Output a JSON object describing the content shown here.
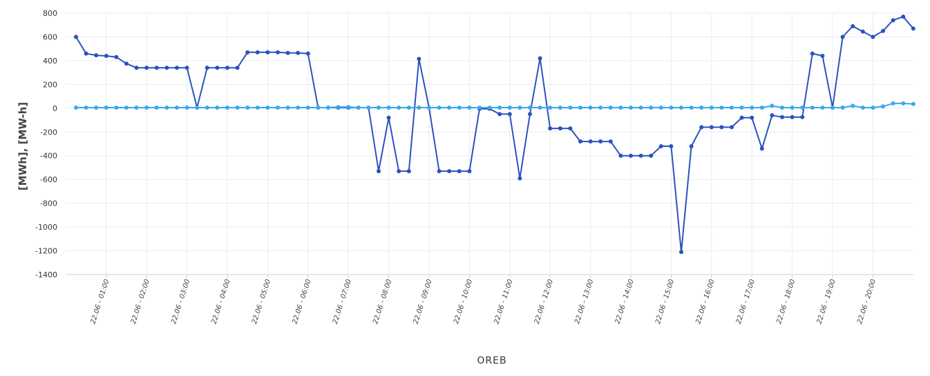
{
  "chart_data": {
    "type": "line",
    "title": "",
    "xlabel": "OREB",
    "ylabel": "[MWh], [MW-h]",
    "ylim": [
      -1400,
      800
    ],
    "y_ticks": [
      800,
      600,
      400,
      200,
      0,
      -200,
      -400,
      -600,
      -800,
      -1000,
      -1200,
      -1400
    ],
    "x_tick_labels": [
      "22.06 - 01:00",
      "22.06 - 02:00",
      "22.06 - 03:00",
      "22.06 - 04:00",
      "22.06 - 05:00",
      "22.06 - 06:00",
      "22.06 - 07:00",
      "22.06 - 08:00",
      "22.06 - 09:00",
      "22.06 - 10:00",
      "22.06 - 11:00",
      "22.06 - 12:00",
      "22.06 - 13:00",
      "22.06 - 14:00",
      "22.06 - 15:00",
      "22.06 - 16:00",
      "22.06 - 17:00",
      "22.06 - 18:00",
      "22.06 - 19:00",
      "22.06 - 20:00"
    ],
    "grid": true,
    "series": [
      {
        "color": "#2a52be",
        "values": [
          600,
          460,
          445,
          440,
          430,
          375,
          340,
          340,
          340,
          340,
          340,
          340,
          5,
          340,
          340,
          340,
          340,
          470,
          470,
          470,
          470,
          465,
          465,
          460,
          5,
          5,
          5,
          5,
          5,
          5,
          -530,
          -80,
          -530,
          -530,
          415,
          5,
          -530,
          -530,
          -530,
          -530,
          -5,
          -5,
          -50,
          -50,
          -590,
          -50,
          420,
          -170,
          -170,
          -170,
          -280,
          -280,
          -280,
          -280,
          -400,
          -400,
          -400,
          -400,
          -320,
          -320,
          -1210,
          -320,
          -160,
          -160,
          -160,
          -160,
          -80,
          -80,
          -340,
          -60,
          -75,
          -75,
          -75,
          460,
          440,
          5,
          600,
          690,
          645,
          600,
          650,
          740,
          770,
          670
        ]
      },
      {
        "color": "#3aa8ec",
        "values": [
          5,
          5,
          5,
          5,
          5,
          5,
          5,
          5,
          5,
          5,
          5,
          5,
          5,
          5,
          5,
          5,
          5,
          5,
          5,
          5,
          5,
          5,
          5,
          5,
          5,
          5,
          10,
          10,
          5,
          5,
          5,
          5,
          5,
          5,
          5,
          5,
          5,
          5,
          5,
          5,
          5,
          5,
          5,
          5,
          5,
          5,
          5,
          5,
          5,
          5,
          5,
          5,
          5,
          5,
          5,
          5,
          5,
          5,
          5,
          5,
          5,
          5,
          5,
          5,
          5,
          5,
          5,
          5,
          5,
          20,
          5,
          5,
          5,
          5,
          5,
          5,
          5,
          20,
          5,
          5,
          15,
          40,
          40,
          35
        ]
      }
    ]
  }
}
